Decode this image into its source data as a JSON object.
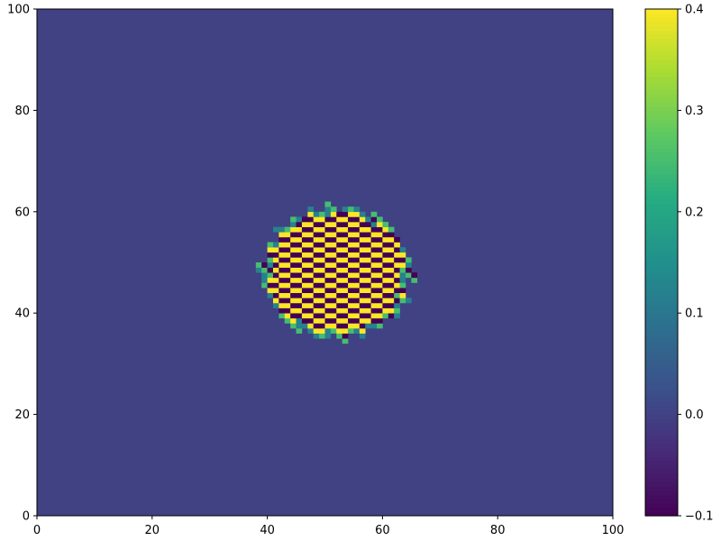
{
  "chart_data": {
    "type": "heatmap",
    "title": "",
    "xlabel": "",
    "ylabel": "",
    "xlim": [
      0,
      100
    ],
    "ylim": [
      0,
      100
    ],
    "x_ticks": [
      0,
      20,
      40,
      60,
      80,
      100
    ],
    "y_ticks": [
      0,
      20,
      40,
      60,
      80,
      100
    ],
    "x_tick_labels": [
      "0",
      "20",
      "40",
      "60",
      "80",
      "100"
    ],
    "y_tick_labels": [
      "0",
      "20",
      "40",
      "60",
      "80",
      "100"
    ],
    "grid": false,
    "colormap": "viridis",
    "background_value": 0.0,
    "blob": {
      "center": [
        52,
        48
      ],
      "radius": 13,
      "pattern": "diagonal stripes alternating between -0.1 and 0.4",
      "min_value": -0.1,
      "max_value": 0.4
    },
    "colorbar": {
      "vmin": -0.1,
      "vmax": 0.4,
      "ticks": [
        -0.1,
        0.0,
        0.1,
        0.2,
        0.3,
        0.4
      ],
      "tick_labels": [
        "−0.1",
        "0.0",
        "0.1",
        "0.2",
        "0.3",
        "0.4"
      ]
    }
  }
}
